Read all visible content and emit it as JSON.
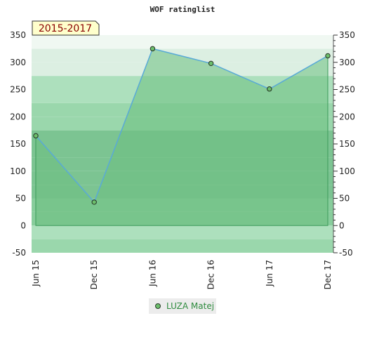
{
  "chart_data": {
    "type": "area",
    "title": "WOF ratinglist",
    "period_label": "2015-2017",
    "categories": [
      "Jun 15",
      "Dec 15",
      "Jun 16",
      "Dec 16",
      "Jun 17",
      "Dec 17"
    ],
    "series": [
      {
        "name": "LUZA Matej",
        "values": [
          165,
          43,
          325,
          298,
          251,
          312
        ]
      }
    ],
    "ylim": [
      -50,
      350
    ],
    "yticks": [
      -50,
      0,
      50,
      100,
      150,
      200,
      250,
      300,
      350
    ],
    "xlabel": "",
    "ylabel": "",
    "grid": "horizontal bands",
    "legend": "bottom-center",
    "colors": {
      "line": "#5aaad8",
      "marker": "#6cbf6c",
      "fill": "#6cbf7f",
      "band_dark": "#7cc492",
      "band_light": "#f0f8f2",
      "badge_bg": "#ffffcc"
    }
  }
}
